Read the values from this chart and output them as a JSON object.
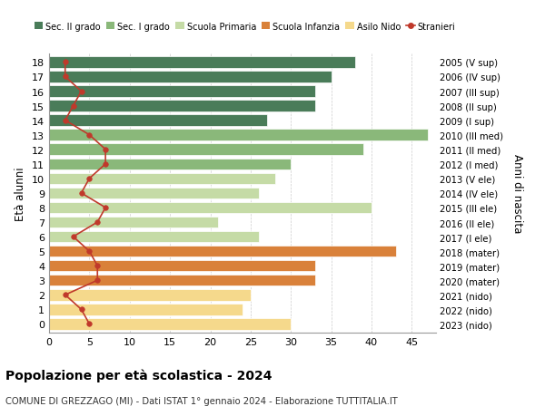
{
  "ages": [
    18,
    17,
    16,
    15,
    14,
    13,
    12,
    11,
    10,
    9,
    8,
    7,
    6,
    5,
    4,
    3,
    2,
    1,
    0
  ],
  "bar_values": [
    38,
    35,
    33,
    33,
    27,
    47,
    39,
    30,
    28,
    26,
    40,
    21,
    26,
    43,
    33,
    33,
    25,
    24,
    30
  ],
  "bar_colors": [
    "#4a7c59",
    "#4a7c59",
    "#4a7c59",
    "#4a7c59",
    "#4a7c59",
    "#8ab87a",
    "#8ab87a",
    "#8ab87a",
    "#c5dba6",
    "#c5dba6",
    "#c5dba6",
    "#c5dba6",
    "#c5dba6",
    "#d9813a",
    "#d9813a",
    "#d9813a",
    "#f5d98c",
    "#f5d98c",
    "#f5d98c"
  ],
  "stranieri_values": [
    2,
    2,
    4,
    3,
    2,
    5,
    7,
    7,
    5,
    4,
    7,
    6,
    3,
    5,
    6,
    6,
    2,
    4,
    5
  ],
  "right_labels": [
    "2005 (V sup)",
    "2006 (IV sup)",
    "2007 (III sup)",
    "2008 (II sup)",
    "2009 (I sup)",
    "2010 (III med)",
    "2011 (II med)",
    "2012 (I med)",
    "2013 (V ele)",
    "2014 (IV ele)",
    "2015 (III ele)",
    "2016 (II ele)",
    "2017 (I ele)",
    "2018 (mater)",
    "2019 (mater)",
    "2020 (mater)",
    "2021 (nido)",
    "2022 (nido)",
    "2023 (nido)"
  ],
  "legend_labels": [
    "Sec. II grado",
    "Sec. I grado",
    "Scuola Primaria",
    "Scuola Infanzia",
    "Asilo Nido",
    "Stranieri"
  ],
  "legend_colors": [
    "#4a7c59",
    "#8ab87a",
    "#c5dba6",
    "#d9813a",
    "#f5d98c",
    "#c0392b"
  ],
  "ylabel_left": "Età alunni",
  "ylabel_right": "Anni di nascita",
  "title": "Popolazione per età scolastica - 2024",
  "subtitle": "COMUNE DI GREZZAGO (MI) - Dati ISTAT 1° gennaio 2024 - Elaborazione TUTTITALIA.IT",
  "xlim": [
    0,
    48
  ],
  "xticks": [
    0,
    5,
    10,
    15,
    20,
    25,
    30,
    35,
    40,
    45
  ],
  "bg_color": "#ffffff",
  "grid_color": "#cccccc",
  "stranieri_color": "#c0392b",
  "stranieri_marker": "o",
  "stranieri_markersize": 4,
  "stranieri_linewidth": 1.2,
  "bar_height": 0.78
}
